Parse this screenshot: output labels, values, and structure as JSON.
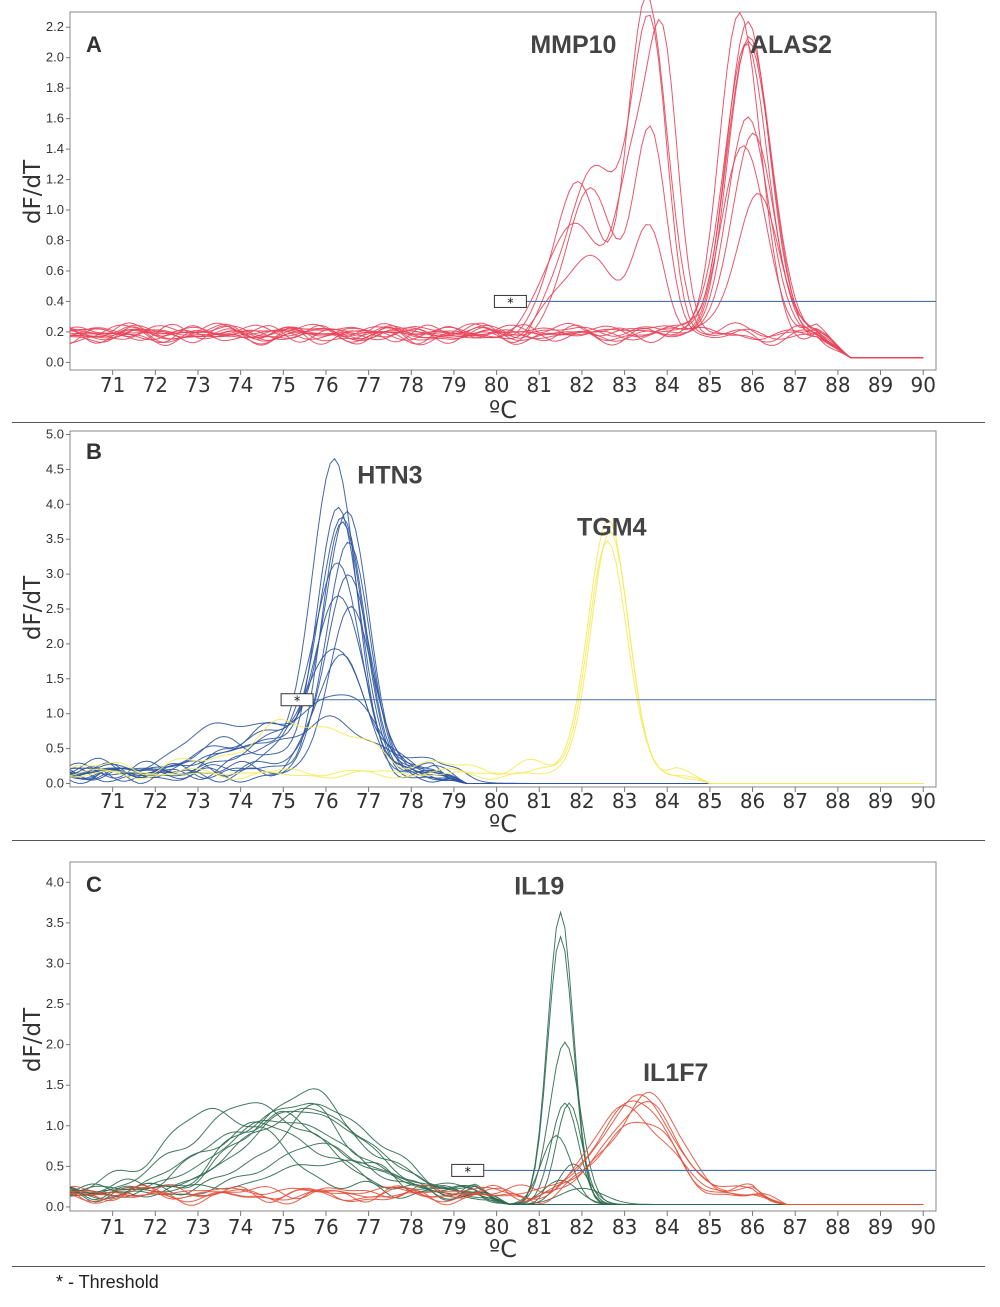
{
  "chart_data": [
    {
      "type": "line",
      "panel_letter": "A",
      "xlabel": "ºC",
      "ylabel": "dF/dT",
      "xlim": [
        70,
        90.3
      ],
      "ylim": [
        -0.05,
        2.3
      ],
      "x_ticks": [
        71,
        72,
        73,
        74,
        75,
        76,
        77,
        78,
        79,
        80,
        81,
        82,
        83,
        84,
        85,
        86,
        87,
        88,
        89,
        90
      ],
      "y_ticks": [
        0.0,
        0.2,
        0.4,
        0.6,
        0.8,
        1.0,
        1.2,
        1.4,
        1.6,
        1.8,
        2.0,
        2.2
      ],
      "y_tick_labels": [
        "0.0",
        "0.2",
        "0.4",
        "0.6",
        "0.8",
        "1.0",
        "1.2",
        "1.4",
        "1.6",
        "1.8",
        "2.0",
        "2.2"
      ],
      "threshold": {
        "value": 0.4,
        "box_x": 80.3,
        "symbol": "*",
        "color": "#4a6fa5"
      },
      "annotations": [
        {
          "text": "MMP10",
          "x": 81.8,
          "y": 2.03
        },
        {
          "text": "ALAS2",
          "x": 86.9,
          "y": 2.03
        }
      ],
      "series_groups": [
        {
          "color": "#e8455a",
          "baseline": 0.2,
          "tail": 0.03,
          "tail_start": 87.5,
          "peaks_list": [
            [
              [
                82.3,
                1.12,
                0.65
              ],
              [
                83.5,
                1.35,
                0.4
              ],
              [
                83.8,
                0.7,
                0.35
              ]
            ],
            [
              [
                81.9,
                0.95,
                0.55
              ],
              [
                83.4,
                1.52,
                0.4
              ],
              [
                83.8,
                0.9,
                0.4
              ]
            ],
            [
              [
                82.2,
                0.95,
                0.55
              ],
              [
                83.6,
                1.3,
                0.38
              ]
            ],
            [
              [
                82.1,
                0.55,
                0.6
              ],
              [
                83.6,
                0.68,
                0.38
              ]
            ],
            [
              [
                81.8,
                0.75,
                0.6
              ],
              [
                83.2,
                1.0,
                0.4
              ],
              [
                83.9,
                1.85,
                0.35
              ]
            ]
          ]
        },
        {
          "color": "#e8455a",
          "baseline": 0.2,
          "tail": 0.03,
          "tail_start": 87.5,
          "peaks_list": [
            [
              [
                85.7,
                2.08,
                0.48
              ]
            ],
            [
              [
                85.9,
                2.0,
                0.5
              ]
            ],
            [
              [
                85.9,
                1.96,
                0.5
              ]
            ],
            [
              [
                85.95,
                1.93,
                0.52
              ]
            ],
            [
              [
                85.9,
                1.4,
                0.5
              ]
            ],
            [
              [
                86.0,
                1.3,
                0.5
              ]
            ],
            [
              [
                85.8,
                1.2,
                0.5
              ]
            ],
            [
              [
                86.1,
                0.88,
                0.5
              ]
            ],
            [
              [
                85.85,
                1.9,
                0.5
              ]
            ]
          ]
        }
      ]
    },
    {
      "type": "line",
      "panel_letter": "B",
      "xlabel": "ºC",
      "ylabel": "dF/dT",
      "xlim": [
        70,
        90.3
      ],
      "ylim": [
        -0.05,
        5.05
      ],
      "x_ticks": [
        71,
        72,
        73,
        74,
        75,
        76,
        77,
        78,
        79,
        80,
        81,
        82,
        83,
        84,
        85,
        86,
        87,
        88,
        89,
        90
      ],
      "y_ticks": [
        0.0,
        0.5,
        1.0,
        1.5,
        2.0,
        2.5,
        3.0,
        3.5,
        4.0,
        4.5,
        5.0
      ],
      "y_tick_labels": [
        "0.0",
        "0.5",
        "1.0",
        "1.5",
        "2.0",
        "2.5",
        "3.0",
        "3.5",
        "4.0",
        "4.5",
        "5.0"
      ],
      "threshold": {
        "value": 1.2,
        "box_x": 75.3,
        "symbol": "*",
        "color": "#4a6fa5"
      },
      "annotations": [
        {
          "text": "HTN3",
          "x": 77.5,
          "y": 4.3
        },
        {
          "text": "TGM4",
          "x": 82.7,
          "y": 3.55
        }
      ],
      "series_groups": [
        {
          "color": "#2f56a0",
          "baseline": 0.17,
          "tail": 0.0,
          "tail_start": 78.5,
          "peaks_list": [
            [
              [
                76.2,
                4.45,
                0.5
              ],
              [
                74.5,
                0.4,
                0.9
              ]
            ],
            [
              [
                76.4,
                3.6,
                0.5
              ],
              [
                74.8,
                0.5,
                1.0
              ]
            ],
            [
              [
                76.3,
                3.9,
                0.5
              ],
              [
                73.8,
                0.5,
                0.8
              ]
            ],
            [
              [
                76.5,
                3.65,
                0.5
              ],
              [
                75.0,
                0.6,
                0.9
              ]
            ],
            [
              [
                76.4,
                3.5,
                0.5
              ]
            ],
            [
              [
                76.3,
                2.5,
                0.55
              ],
              [
                74.5,
                0.6,
                0.9
              ]
            ],
            [
              [
                76.5,
                2.65,
                0.55
              ]
            ],
            [
              [
                76.6,
                2.3,
                0.55
              ]
            ],
            [
              [
                76.2,
                1.8,
                0.6
              ],
              [
                74.2,
                0.5,
                0.9
              ]
            ],
            [
              [
                76.3,
                1.1,
                0.8
              ],
              [
                73.8,
                0.7,
                1.0
              ]
            ],
            [
              [
                76.5,
                3.4,
                0.5
              ]
            ],
            [
              [
                76.3,
                3.0,
                0.5
              ],
              [
                75.2,
                0.5,
                0.6
              ]
            ],
            [
              [
                76.0,
                0.75,
                1.3
              ],
              [
                79.0,
                0.18,
                0.3
              ]
            ],
            [
              [
                76.4,
                1.6,
                0.6
              ]
            ]
          ]
        },
        {
          "color": "#f5ea55",
          "baseline": 0.17,
          "tail": 0.0,
          "tail_start": 84.2,
          "peaks_list": [
            [
              [
                82.6,
                3.55,
                0.45
              ],
              [
                75.5,
                0.65,
                1.2
              ]
            ],
            [
              [
                82.65,
                3.45,
                0.45
              ]
            ],
            [
              [
                82.6,
                3.3,
                0.45
              ]
            ]
          ]
        }
      ]
    },
    {
      "type": "line",
      "panel_letter": "C",
      "xlabel": "ºC",
      "ylabel": "dF/dT",
      "xlim": [
        70,
        90.3
      ],
      "ylim": [
        -0.05,
        4.25
      ],
      "x_ticks": [
        71,
        72,
        73,
        74,
        75,
        76,
        77,
        78,
        79,
        80,
        81,
        82,
        83,
        84,
        85,
        86,
        87,
        88,
        89,
        90
      ],
      "y_ticks": [
        0.0,
        0.5,
        1.0,
        1.5,
        2.0,
        2.5,
        3.0,
        3.5,
        4.0
      ],
      "y_tick_labels": [
        "0.0",
        "0.5",
        "1.0",
        "1.5",
        "2.0",
        "2.5",
        "3.0",
        "3.5",
        "4.0"
      ],
      "threshold": {
        "value": 0.45,
        "box_x": 79.3,
        "symbol": "*",
        "color": "#4a6fa5"
      },
      "annotations": [
        {
          "text": "IL19",
          "x": 81.0,
          "y": 3.85
        },
        {
          "text": "IL1F7",
          "x": 84.2,
          "y": 1.55
        }
      ],
      "series_groups": [
        {
          "color": "#2e6b4f",
          "baseline": 0.17,
          "tail": 0.03,
          "tail_start": 79.5,
          "peaks_list": [
            [
              [
                81.5,
                3.6,
                0.3
              ],
              [
                75.5,
                1.0,
                1.4
              ]
            ],
            [
              [
                81.5,
                3.3,
                0.3
              ],
              [
                74.8,
                0.9,
                1.5
              ]
            ],
            [
              [
                81.6,
                2.0,
                0.35
              ],
              [
                75.2,
                1.1,
                1.3
              ]
            ],
            [
              [
                81.7,
                1.25,
                0.3
              ],
              [
                73.5,
                1.0,
                1.3
              ]
            ],
            [
              [
                81.6,
                1.25,
                0.32
              ],
              [
                76.0,
                1.0,
                1.2
              ]
            ],
            [
              [
                81.4,
                0.85,
                0.35
              ],
              [
                75.5,
                1.2,
                1.3
              ]
            ],
            [
              [
                81.8,
                0.5,
                0.35
              ],
              [
                74.5,
                0.8,
                1.4
              ]
            ],
            [
              [
                81.5,
                0.3,
                0.4
              ],
              [
                75.8,
                0.6,
                1.2
              ]
            ],
            [
              [
                82.0,
                0.2,
                0.5
              ],
              [
                76.2,
                0.35,
                1.2
              ]
            ],
            [
              [
                75.0,
                0.95,
                1.5
              ]
            ],
            [
              [
                75.5,
                1.05,
                1.4
              ]
            ],
            [
              [
                74.3,
                1.1,
                1.5
              ]
            ]
          ]
        },
        {
          "color": "#e3503a",
          "baseline": 0.17,
          "tail": 0.03,
          "tail_start": 86.0,
          "peaks_list": [
            [
              [
                83.2,
                1.2,
                0.8
              ]
            ],
            [
              [
                83.3,
                1.15,
                0.8
              ]
            ],
            [
              [
                83.4,
                1.1,
                0.8
              ]
            ],
            [
              [
                83.1,
                1.05,
                0.8
              ]
            ],
            [
              [
                83.3,
                0.98,
                0.8
              ]
            ],
            [
              [
                83.5,
                1.18,
                0.8
              ]
            ]
          ]
        }
      ]
    }
  ],
  "footnote": "* - Threshold"
}
